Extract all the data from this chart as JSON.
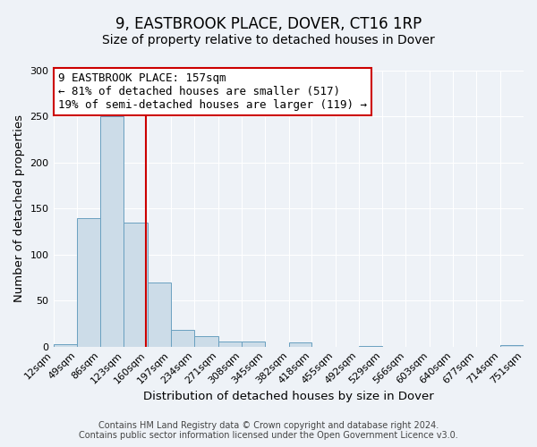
{
  "title": "9, EASTBROOK PLACE, DOVER, CT16 1RP",
  "subtitle": "Size of property relative to detached houses in Dover",
  "xlabel": "Distribution of detached houses by size in Dover",
  "ylabel": "Number of detached properties",
  "bin_edges": [
    12,
    49,
    86,
    123,
    160,
    197,
    234,
    271,
    308,
    345,
    382,
    418,
    455,
    492,
    529,
    566,
    603,
    640,
    677,
    714,
    751
  ],
  "bin_counts": [
    3,
    140,
    250,
    135,
    70,
    18,
    11,
    5,
    5,
    0,
    4,
    0,
    0,
    1,
    0,
    0,
    0,
    0,
    0,
    2
  ],
  "bar_color": "#ccdce8",
  "bar_edge_color": "#6aa0c0",
  "property_size": 157,
  "vline_color": "#cc0000",
  "annotation_line1": "9 EASTBROOK PLACE: 157sqm",
  "annotation_line2": "← 81% of detached houses are smaller (517)",
  "annotation_line3": "19% of semi-detached houses are larger (119) →",
  "annotation_box_color": "#ffffff",
  "annotation_box_edge_color": "#cc0000",
  "ylim": [
    0,
    300
  ],
  "yticks": [
    0,
    50,
    100,
    150,
    200,
    250,
    300
  ],
  "footer_line1": "Contains HM Land Registry data © Crown copyright and database right 2024.",
  "footer_line2": "Contains public sector information licensed under the Open Government Licence v3.0.",
  "background_color": "#eef2f7",
  "grid_color": "#ffffff",
  "title_fontsize": 12,
  "subtitle_fontsize": 10,
  "axis_label_fontsize": 9.5,
  "tick_label_fontsize": 8,
  "annotation_fontsize": 9,
  "footer_fontsize": 7
}
